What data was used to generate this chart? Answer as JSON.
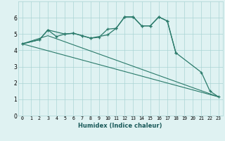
{
  "xlabel": "Humidex (Indice chaleur)",
  "bg_color": "#dff2f2",
  "grid_color": "#aad4d4",
  "line_color": "#2a7a6a",
  "xlim": [
    -0.5,
    23.5
  ],
  "ylim": [
    0,
    7
  ],
  "xticks": [
    0,
    1,
    2,
    3,
    4,
    5,
    6,
    7,
    8,
    9,
    10,
    11,
    12,
    13,
    14,
    15,
    16,
    17,
    18,
    19,
    20,
    21,
    22,
    23
  ],
  "yticks": [
    0,
    1,
    2,
    3,
    4,
    5,
    6
  ],
  "line1_x": [
    0,
    23
  ],
  "line1_y": [
    4.4,
    1.15
  ],
  "line2_x": [
    0,
    3,
    23
  ],
  "line2_y": [
    4.4,
    4.9,
    1.15
  ],
  "line3_x": [
    0,
    2,
    3,
    4,
    5,
    6,
    7,
    8,
    9,
    10,
    11,
    12,
    13,
    14,
    15,
    16,
    17,
    18
  ],
  "line3_y": [
    4.4,
    4.65,
    5.25,
    4.85,
    5.0,
    5.05,
    4.9,
    4.75,
    4.8,
    5.3,
    5.35,
    6.05,
    6.05,
    5.5,
    5.5,
    6.05,
    5.8,
    3.85
  ],
  "line4_x": [
    0,
    2,
    3,
    5,
    6,
    7,
    8,
    10,
    11,
    12,
    13,
    14,
    15,
    16,
    17,
    18,
    21,
    22,
    23
  ],
  "line4_y": [
    4.4,
    4.65,
    5.25,
    5.0,
    5.05,
    4.9,
    4.75,
    4.95,
    5.35,
    6.05,
    6.05,
    5.5,
    5.5,
    6.05,
    5.8,
    3.85,
    2.65,
    1.5,
    1.15
  ]
}
